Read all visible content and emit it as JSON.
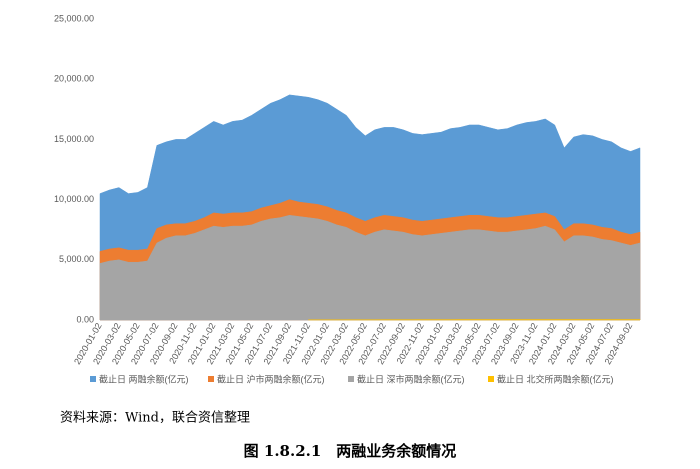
{
  "chart_data": {
    "type": "area",
    "categories": [
      "2020-01-02",
      null,
      "2020-03-02",
      null,
      "2020-05-02",
      null,
      "2020-07-02",
      null,
      "2020-09-02",
      null,
      "2020-11-02",
      null,
      "2021-01-02",
      null,
      "2021-03-02",
      null,
      "2021-05-02",
      null,
      "2021-07-02",
      null,
      "2021-09-02",
      null,
      "2021-11-02",
      null,
      "2022-01-02",
      null,
      "2022-03-02",
      null,
      "2022-05-02",
      null,
      "2022-07-02",
      null,
      "2022-09-02",
      null,
      "2022-11-02",
      null,
      "2023-01-02",
      null,
      "2023-03-02",
      null,
      "2023-05-02",
      null,
      "2023-07-02",
      null,
      "2023-09-02",
      null,
      "2023-11-02",
      null,
      "2024-01-02",
      null,
      "2024-03-02",
      null,
      "2024-05-02",
      null,
      "2024-07-02",
      null,
      "2024-09-02",
      null
    ],
    "series": [
      {
        "name": "截止日 两融余额(亿元)",
        "color": "#5b9bd5",
        "values": [
          10500,
          10800,
          11000,
          10500,
          10600,
          11000,
          14500,
          14800,
          15000,
          15000,
          15500,
          16000,
          16500,
          16200,
          16500,
          16600,
          17000,
          17500,
          18000,
          18300,
          18700,
          18600,
          18500,
          18300,
          18000,
          17500,
          17000,
          16000,
          15300,
          15800,
          16000,
          16000,
          15800,
          15500,
          15400,
          15500,
          15600,
          15900,
          16000,
          16200,
          16200,
          16000,
          15800,
          15900,
          16200,
          16400,
          16500,
          16700,
          16200,
          14300,
          15200,
          15400,
          15300,
          15000,
          14800,
          14300,
          14000,
          14300
        ]
      },
      {
        "name": "截止日 沪市两融余额(亿元)",
        "color": "#ed7d31",
        "values": [
          5700,
          5900,
          6000,
          5800,
          5800,
          5900,
          7600,
          7900,
          8000,
          8000,
          8200,
          8500,
          8900,
          8800,
          8900,
          8900,
          9000,
          9300,
          9500,
          9700,
          10000,
          9800,
          9700,
          9600,
          9400,
          9100,
          8900,
          8500,
          8200,
          8500,
          8700,
          8600,
          8500,
          8300,
          8200,
          8300,
          8400,
          8500,
          8600,
          8700,
          8700,
          8600,
          8500,
          8500,
          8600,
          8700,
          8800,
          8900,
          8600,
          7500,
          8000,
          8000,
          7900,
          7700,
          7600,
          7300,
          7100,
          7300
        ]
      },
      {
        "name": "截止日 深市两融余额(亿元)",
        "color": "#a5a5a5",
        "values": [
          4700,
          4900,
          5000,
          4800,
          4800,
          4900,
          6400,
          6800,
          7000,
          7000,
          7200,
          7500,
          7800,
          7700,
          7800,
          7800,
          7900,
          8200,
          8400,
          8500,
          8700,
          8600,
          8500,
          8400,
          8200,
          7900,
          7700,
          7300,
          7000,
          7300,
          7500,
          7400,
          7300,
          7100,
          7000,
          7100,
          7200,
          7300,
          7400,
          7500,
          7500,
          7400,
          7300,
          7300,
          7400,
          7500,
          7600,
          7800,
          7500,
          6500,
          7000,
          7000,
          6900,
          6700,
          6600,
          6400,
          6200,
          6400
        ]
      },
      {
        "name": "截止日 北交所两融余额(亿元)",
        "color": "#ffc000",
        "values": [
          null,
          null,
          null,
          null,
          null,
          null,
          null,
          null,
          null,
          null,
          null,
          null,
          null,
          null,
          null,
          null,
          null,
          null,
          null,
          null,
          null,
          null,
          20,
          20,
          20,
          20,
          25,
          25,
          25,
          25,
          30,
          30,
          30,
          30,
          35,
          35,
          35,
          35,
          40,
          40,
          40,
          40,
          40,
          40,
          40,
          40,
          40,
          40,
          40,
          40,
          40,
          40,
          40,
          40,
          40,
          40,
          40,
          40
        ]
      }
    ],
    "ylim": [
      0,
      25000
    ],
    "yticks": [
      {
        "value": 0,
        "label": "0.00"
      },
      {
        "value": 5000,
        "label": "5,000.00"
      },
      {
        "value": 10000,
        "label": "10,000.00"
      },
      {
        "value": 15000,
        "label": "15,000.00"
      },
      {
        "value": 20000,
        "label": "20,000.00"
      },
      {
        "value": 25000,
        "label": "25,000.00"
      }
    ],
    "grid": false,
    "legend": "bottom",
    "source": "资料来源：Wind，联合资信整理",
    "caption": "图 1.8.2.1　两融业务余额情况"
  }
}
